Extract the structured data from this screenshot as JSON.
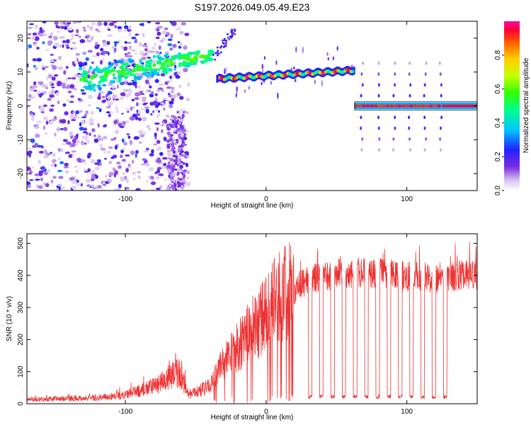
{
  "title": "S197.2026.049.05.49.E23",
  "chart_data": [
    {
      "type": "heatmap",
      "name": "spectrogram",
      "xlabel": "Height of straight line (km)",
      "ylabel": "Frequency (Hz)",
      "xlim": [
        -170,
        150
      ],
      "ylim": [
        -25,
        25
      ],
      "xticks": [
        "-100",
        "0",
        "100"
      ],
      "xtick_values": [
        -100,
        0,
        100
      ],
      "yticks": [
        "20",
        "10",
        "0",
        "-10",
        "-20"
      ],
      "ytick_values": [
        20,
        10,
        0,
        -10,
        -20
      ],
      "colorbar": {
        "label": "Normalized spectral amplitude",
        "range": [
          0,
          1
        ],
        "ticks": [
          "0.0",
          "0.2",
          "0.4",
          "0.6",
          "0.8"
        ],
        "tick_values": [
          0.0,
          0.2,
          0.4,
          0.6,
          0.8
        ],
        "colormap": "rainbow (violet to red)"
      },
      "features": [
        {
          "segment": "noisy scatter",
          "x_range": [
            -170,
            -55
          ],
          "freq_range": [
            -25,
            25
          ],
          "amplitude": "low (0.05-0.3)"
        },
        {
          "segment": "rising line",
          "x_range": [
            -130,
            -38
          ],
          "freq": [
            8,
            16
          ],
          "amplitude": "0.2-0.6"
        },
        {
          "segment": "flat line",
          "x_range": [
            -35,
            63
          ],
          "freq": [
            8,
            11
          ],
          "amplitude": "0.3-0.95"
        },
        {
          "segment": "flat line with side-lobe spikes",
          "x_range": [
            63,
            150
          ],
          "freq": [
            0,
            0
          ],
          "amplitude": "0.5-1.0",
          "spike_x": [
            68,
            80,
            91,
            102,
            113,
            124
          ]
        }
      ]
    },
    {
      "type": "line",
      "name": "snr",
      "xlabel": "Height of straight line (km)",
      "ylabel": "SNR (10 * v/v)",
      "xlim": [
        -170,
        150
      ],
      "ylim": [
        0,
        530
      ],
      "xticks": [
        "-100",
        "0",
        "100"
      ],
      "xtick_values": [
        -100,
        0,
        100
      ],
      "yticks": [
        "0",
        "100",
        "200",
        "300",
        "400",
        "500"
      ],
      "ytick_values": [
        0,
        100,
        200,
        300,
        400,
        500
      ],
      "color": "#ee3333",
      "trend": {
        "x": [
          -170,
          -120,
          -100,
          -80,
          -62,
          -55,
          -40,
          -32,
          -20,
          -10,
          0,
          10,
          20,
          30,
          40,
          60,
          80,
          100,
          120,
          150
        ],
        "y": [
          15,
          20,
          30,
          60,
          110,
          30,
          60,
          120,
          180,
          230,
          280,
          340,
          360,
          390,
          400,
          410,
          410,
          400,
          395,
          405
        ]
      },
      "dropouts_x": [
        30,
        38,
        46,
        54,
        62,
        70,
        78,
        86,
        94,
        102,
        110,
        118,
        126
      ],
      "dropout_level": 22
    }
  ]
}
